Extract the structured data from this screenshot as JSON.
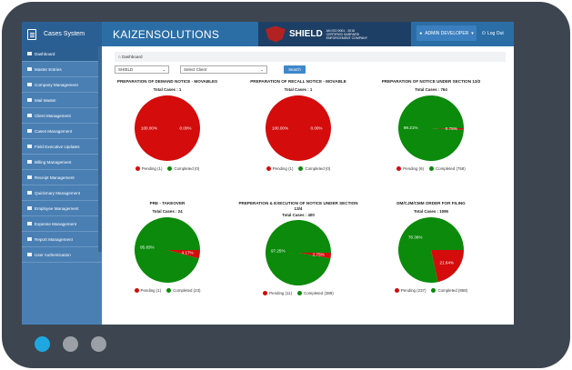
{
  "app": {
    "name": "Cases System",
    "company_logo": "KAIZENSOLUTIONS",
    "client_logo": "SHIELD",
    "client_sub": "AN ISO 9001 : 2015 CERTIFIED SARFAESI ENFORCEMENT COMPANY"
  },
  "header": {
    "user_label": "ADMIN DEVELOPER",
    "logout_label": "Log Out"
  },
  "sidebar": {
    "items": [
      {
        "label": "Dashboard"
      },
      {
        "label": "Master Entries"
      },
      {
        "label": "Company Management"
      },
      {
        "label": "Mail Master"
      },
      {
        "label": "Client Management"
      },
      {
        "label": "Cases Management"
      },
      {
        "label": "Field Executive Updates"
      },
      {
        "label": "Billing Management"
      },
      {
        "label": "Receipt Management"
      },
      {
        "label": "Quickmary Management"
      },
      {
        "label": "Employee Management"
      },
      {
        "label": "Expense Management"
      },
      {
        "label": "Report Management"
      },
      {
        "label": "User Authentication"
      }
    ]
  },
  "breadcrumb": "Dashboard",
  "filters": {
    "company": "SHIELD",
    "client_placeholder": "Select Client",
    "search_label": "Search"
  },
  "colors": {
    "pending": "#d40c0c",
    "completed": "#0b8a0b"
  },
  "panels": [
    {
      "title": "PREPARATION OF DEMAND NOTICE - MOVABLES",
      "total": "Total Cases : 1",
      "pending": 1,
      "completed": 0,
      "pending_pct": "100.00%",
      "completed_pct": "0.00%",
      "legend_pending": "Pending (1)",
      "legend_completed": "Completed (0)"
    },
    {
      "title": "PREPARATION OF RECALL NOTICE - MOVABLE",
      "total": "Total Cases : 1",
      "pending": 1,
      "completed": 0,
      "pending_pct": "100.00%",
      "completed_pct": "0.00%",
      "legend_pending": "Pending (1)",
      "legend_completed": "Completed (0)"
    },
    {
      "title": "PREPARATION OF NOTICE UNDER SECTION 13/2",
      "total": "Total Cases : 764",
      "pending": 6,
      "completed": 758,
      "pending_pct": "0.79%",
      "completed_pct": "99.21%",
      "legend_pending": "Pending (6)",
      "legend_completed": "Completed (758)"
    },
    {
      "title": "PRE - TAKEOVER",
      "total": "Total Cases : 24",
      "pending": 1,
      "completed": 23,
      "pending_pct": "4.17%",
      "completed_pct": "95.83%",
      "legend_pending": "Pending (1)",
      "legend_completed": "Completed (23)"
    },
    {
      "title": "PREPERATION & EXECUTION OF NOTICE UNDER SECTION 13/4",
      "total": "Total Cases : 400",
      "pending": 11,
      "completed": 389,
      "pending_pct": "2.75%",
      "completed_pct": "97.25%",
      "legend_pending": "Pending (11)",
      "legend_completed": "Completed (389)"
    },
    {
      "title": "DM/CJM/CMM ORDER FOR FILING",
      "total": "Total Cases : 1095",
      "pending": 237,
      "completed": 858,
      "pending_pct": "21.64%",
      "completed_pct": "78.36%",
      "legend_pending": "Pending (237)",
      "legend_completed": "Completed (858)"
    }
  ]
}
